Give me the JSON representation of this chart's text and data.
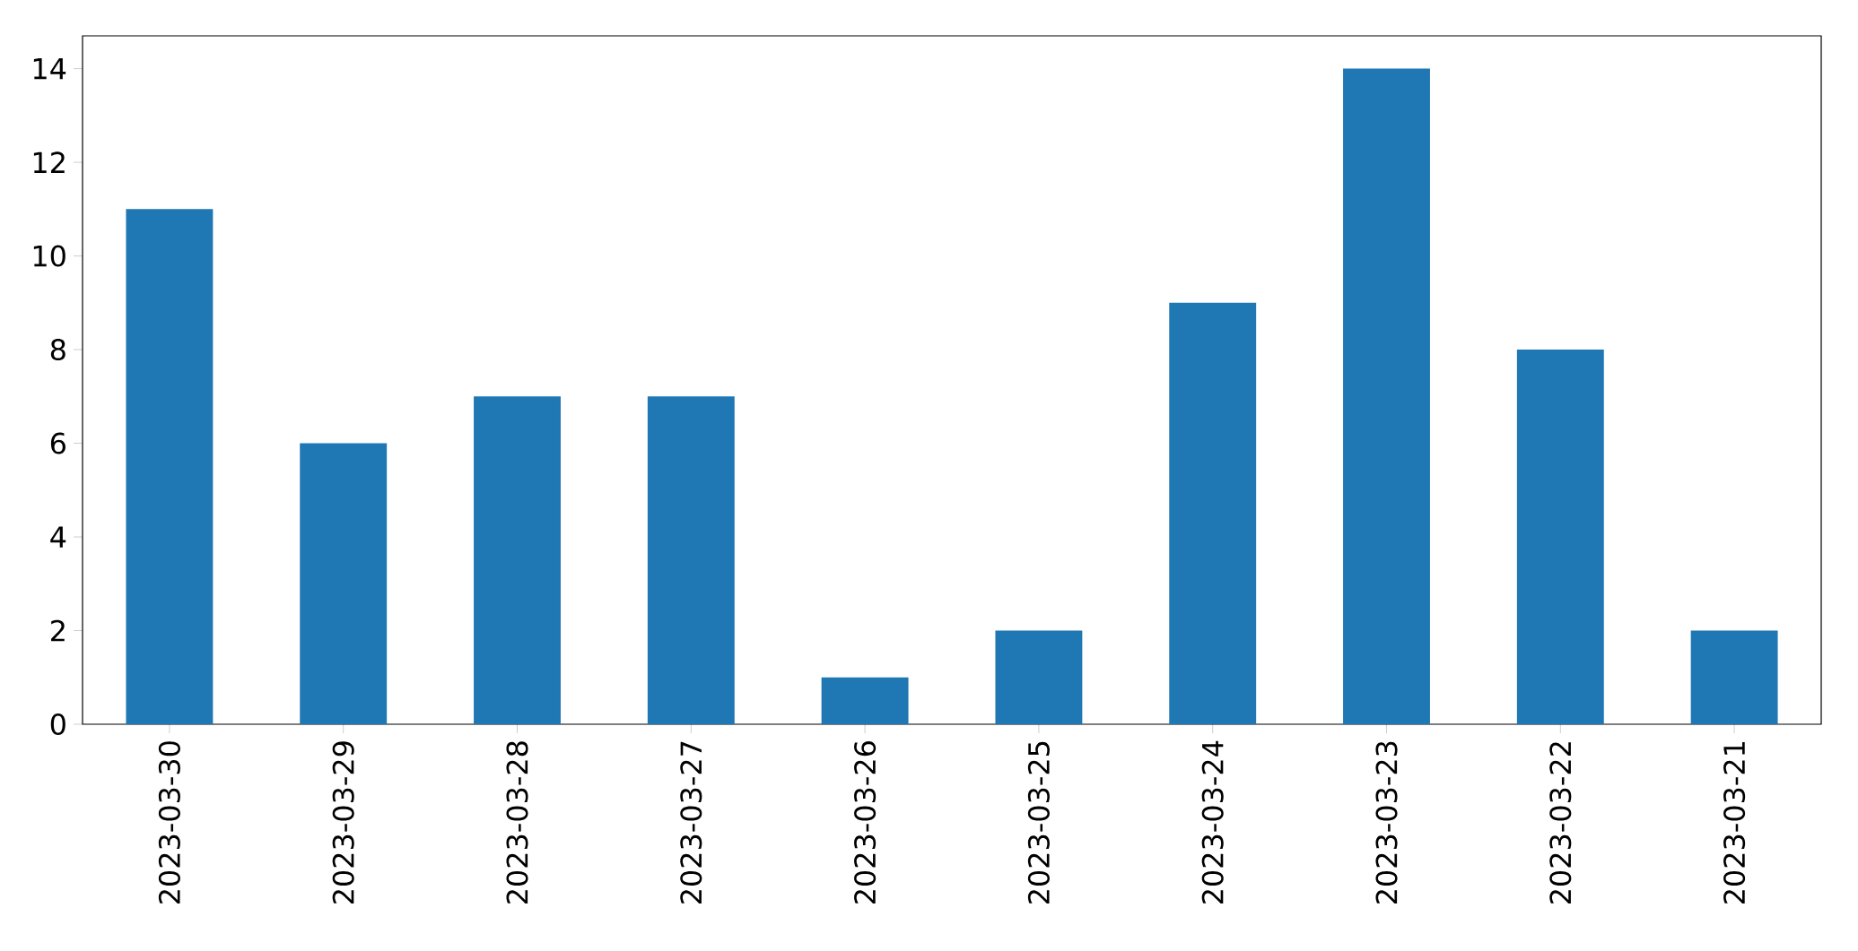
{
  "chart_data": {
    "type": "bar",
    "categories": [
      "2023-03-30",
      "2023-03-29",
      "2023-03-28",
      "2023-03-27",
      "2023-03-26",
      "2023-03-25",
      "2023-03-24",
      "2023-03-23",
      "2023-03-22",
      "2023-03-21"
    ],
    "values": [
      11,
      6,
      7,
      7,
      1,
      2,
      9,
      14,
      8,
      2
    ],
    "color": "#1f77b4",
    "ylim": [
      0,
      14.7
    ],
    "yticks": [
      0,
      2,
      4,
      6,
      8,
      10,
      12,
      14
    ]
  }
}
